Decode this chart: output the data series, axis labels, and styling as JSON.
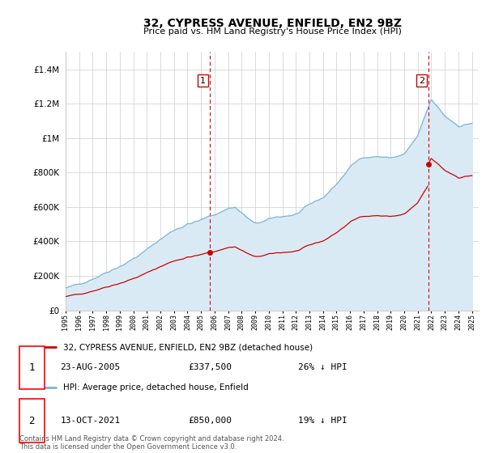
{
  "title": "32, CYPRESS AVENUE, ENFIELD, EN2 9BZ",
  "subtitle": "Price paid vs. HM Land Registry's House Price Index (HPI)",
  "sale1_label": "23-AUG-2005",
  "sale1_price": 337500,
  "sale1_text": "£337,500",
  "sale1_hpi": "26% ↓ HPI",
  "sale1_year": 2005.64,
  "sale2_label": "13-OCT-2021",
  "sale2_price": 850000,
  "sale2_text": "£850,000",
  "sale2_hpi": "19% ↓ HPI",
  "sale2_year": 2021.78,
  "legend_line1": "32, CYPRESS AVENUE, ENFIELD, EN2 9BZ (detached house)",
  "legend_line2": "HPI: Average price, detached house, Enfield",
  "footer1": "Contains HM Land Registry data © Crown copyright and database right 2024.",
  "footer2": "This data is licensed under the Open Government Licence v3.0.",
  "hpi_color": "#7ab4d8",
  "hpi_fill": "#daeaf5",
  "price_color": "#cc0000",
  "dashed_color": "#cc0000",
  "ylim_max": 1500000,
  "background": "#ffffff",
  "grid_color": "#cccccc",
  "label1_box_color": "#cc0000",
  "label2_box_color": "#cc0000"
}
